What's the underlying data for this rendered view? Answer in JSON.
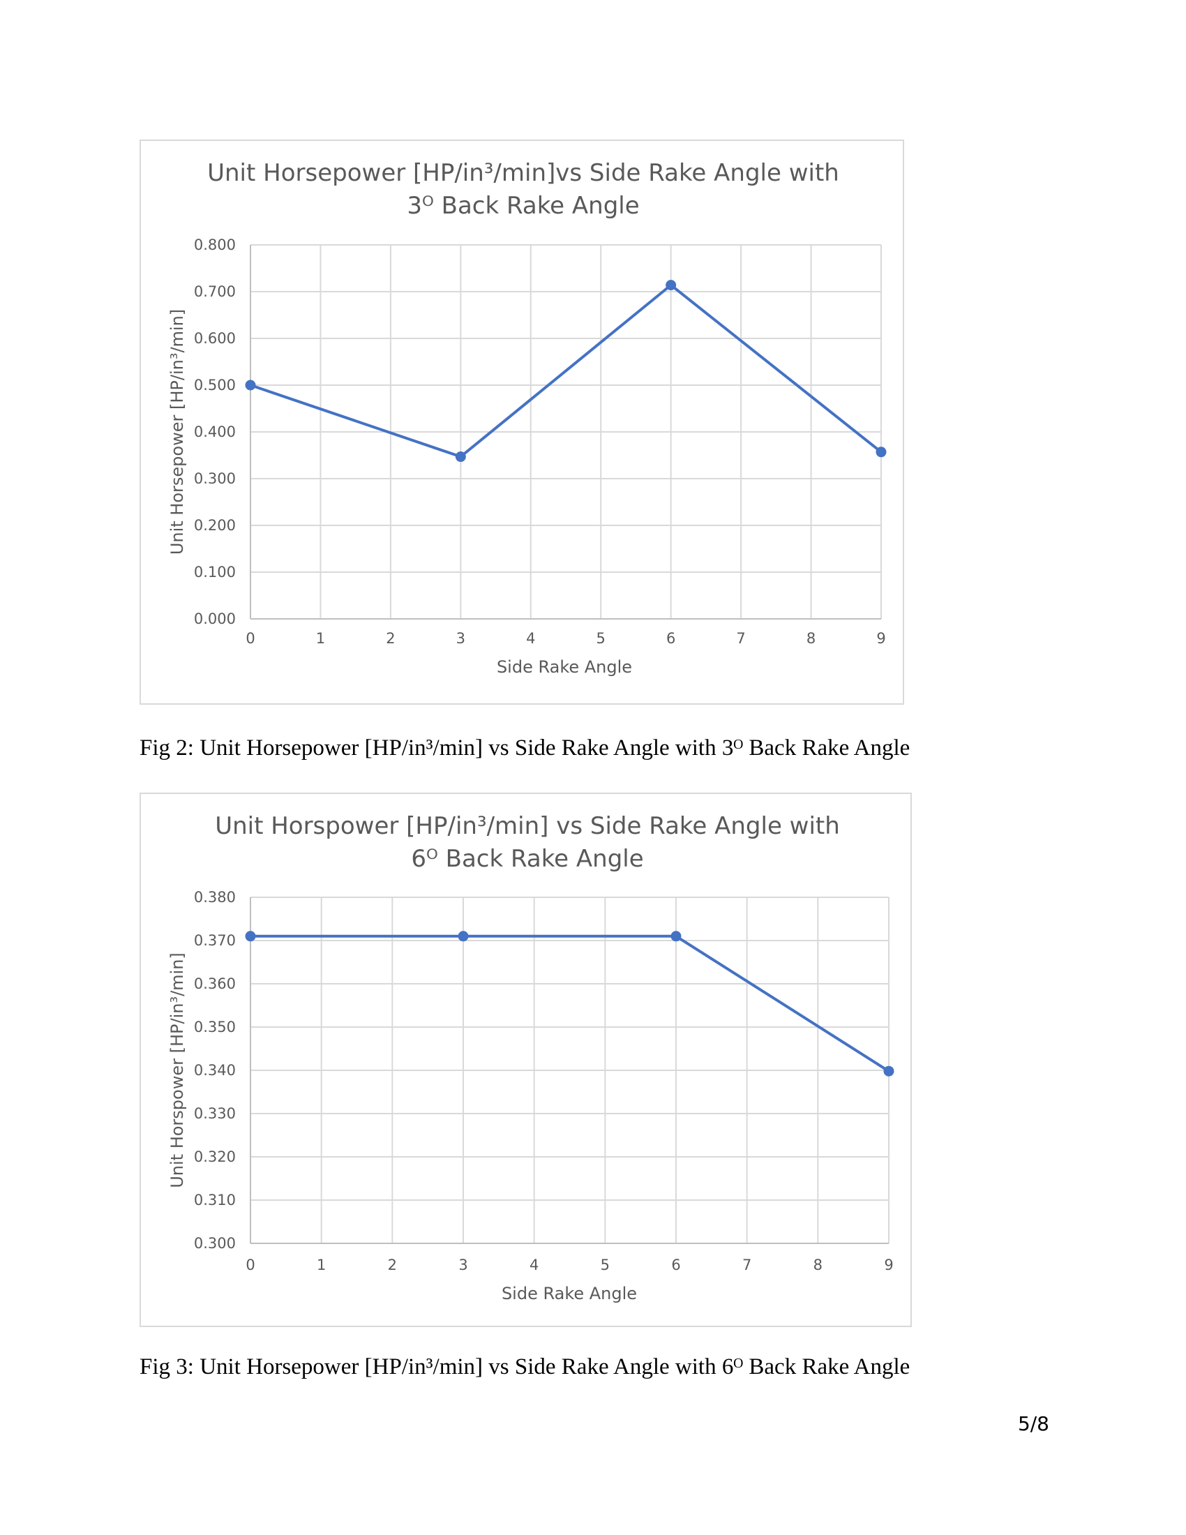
{
  "chart_data": [
    {
      "type": "line",
      "title_line1": "Unit Horsepower [HP/in³/min]vs Side Rake Angle with",
      "title_line2": "3ᴼ Back Rake Angle",
      "xlabel": "Side Rake Angle",
      "ylabel": "Unit Horsepower [HP/in³/min]",
      "xlim": [
        0,
        9
      ],
      "ylim": [
        0,
        0.8
      ],
      "x_ticks": [
        "0",
        "1",
        "2",
        "3",
        "4",
        "5",
        "6",
        "7",
        "8",
        "9"
      ],
      "y_ticks": [
        "0.000",
        "0.100",
        "0.200",
        "0.300",
        "0.400",
        "0.500",
        "0.600",
        "0.700",
        "0.800"
      ],
      "grid": true,
      "color": "#4472c4",
      "x": [
        0,
        3,
        6,
        9
      ],
      "y": [
        0.5,
        0.347,
        0.714,
        0.357
      ]
    },
    {
      "type": "line",
      "title_line1": "Unit Horspower [HP/in³/min] vs Side Rake Angle with",
      "title_line2": "6ᴼ Back Rake Angle",
      "xlabel": "Side Rake Angle",
      "ylabel": "Unit Horspower [HP/in³/min]",
      "xlim": [
        0,
        9
      ],
      "ylim": [
        0.3,
        0.38
      ],
      "x_ticks": [
        "0",
        "1",
        "2",
        "3",
        "4",
        "5",
        "6",
        "7",
        "8",
        "9"
      ],
      "y_ticks": [
        "0.300",
        "0.310",
        "0.320",
        "0.330",
        "0.340",
        "0.350",
        "0.360",
        "0.370",
        "0.380"
      ],
      "grid": true,
      "color": "#4472c4",
      "x": [
        0,
        3,
        6,
        9
      ],
      "y": [
        0.371,
        0.371,
        0.371,
        0.3398
      ]
    }
  ],
  "captions": [
    "Fig 2: Unit Horsepower [HP/in³/min] vs Side Rake Angle with 3ᴼ Back Rake Angle",
    "Fig 3: Unit Horsepower [HP/in³/min] vs Side Rake Angle with 6ᴼ Back Rake Angle"
  ],
  "page_number": "5/8"
}
